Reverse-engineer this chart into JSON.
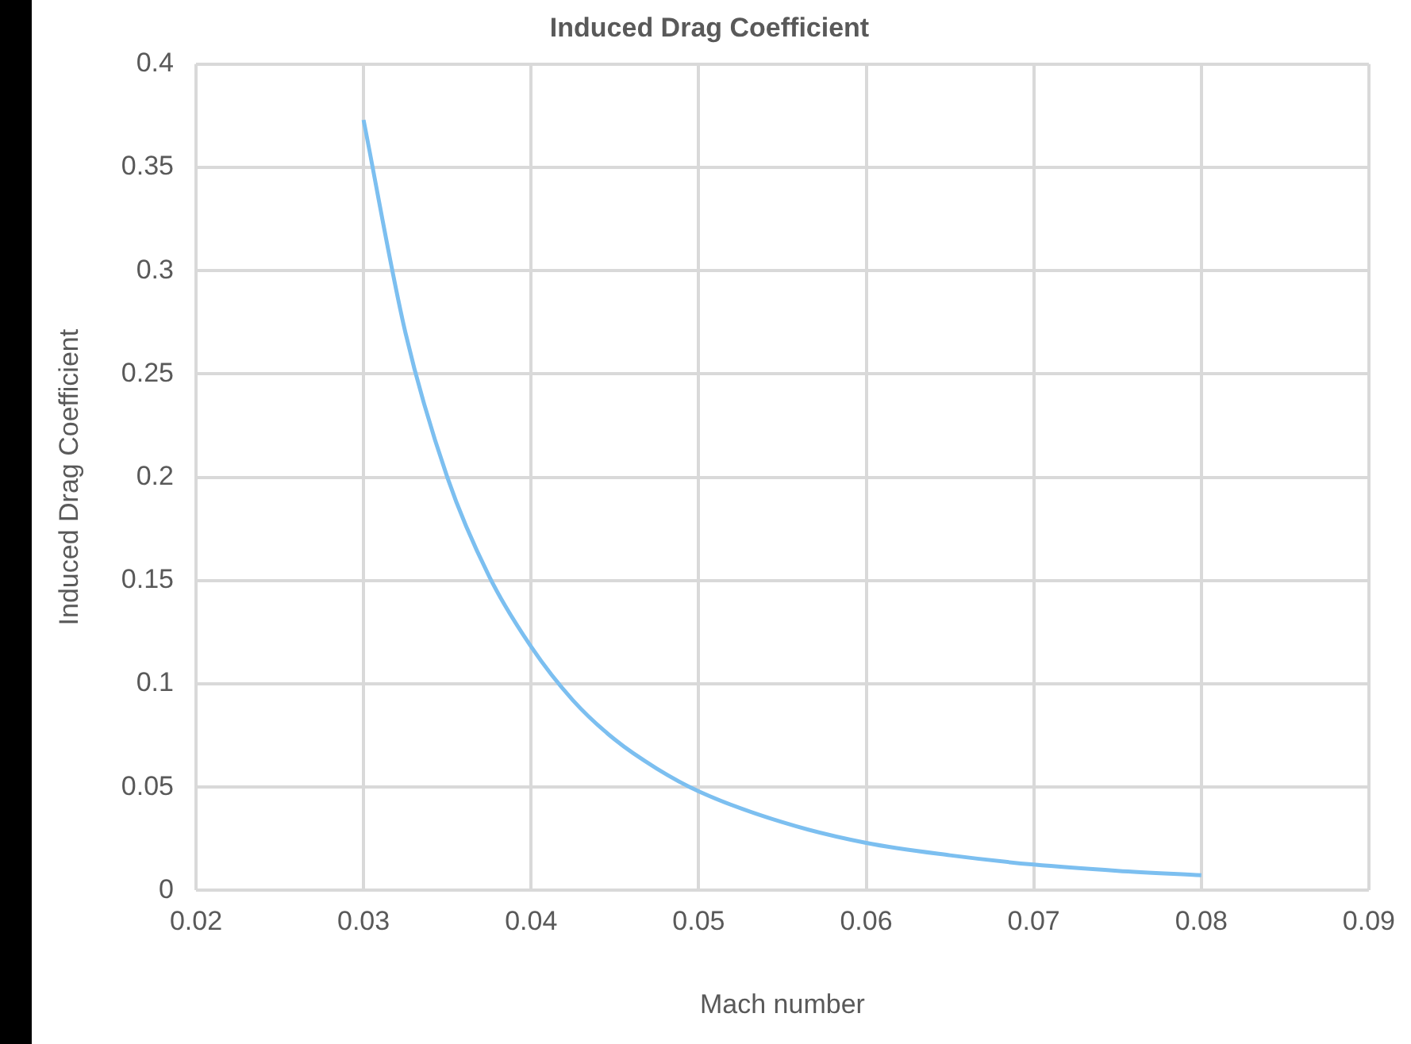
{
  "chart_data": {
    "type": "line",
    "title": "Induced Drag Coefficient",
    "xlabel": "Mach number",
    "ylabel": "Induced Drag Coefficient",
    "x": [
      0.03,
      0.0325,
      0.035,
      0.0375,
      0.04,
      0.0425,
      0.045,
      0.0475,
      0.05,
      0.055,
      0.06,
      0.065,
      0.07,
      0.075,
      0.08
    ],
    "series": [
      {
        "color": "#7cbff0",
        "values": [
          0.373,
          0.27,
          0.2,
          0.152,
          0.118,
          0.092,
          0.073,
          0.059,
          0.048,
          0.033,
          0.023,
          0.017,
          0.0125,
          0.0095,
          0.0074
        ]
      }
    ],
    "xlim": [
      0.02,
      0.09
    ],
    "xticks": [
      0.02,
      0.03,
      0.04,
      0.05,
      0.06,
      0.07,
      0.08,
      0.09
    ],
    "ylim": [
      0,
      0.4
    ],
    "yticks": [
      0,
      0.05,
      0.1,
      0.15,
      0.2,
      0.25,
      0.3,
      0.35,
      0.4
    ],
    "grid": true,
    "legend": false,
    "marker": "none",
    "line_style": "solid"
  }
}
